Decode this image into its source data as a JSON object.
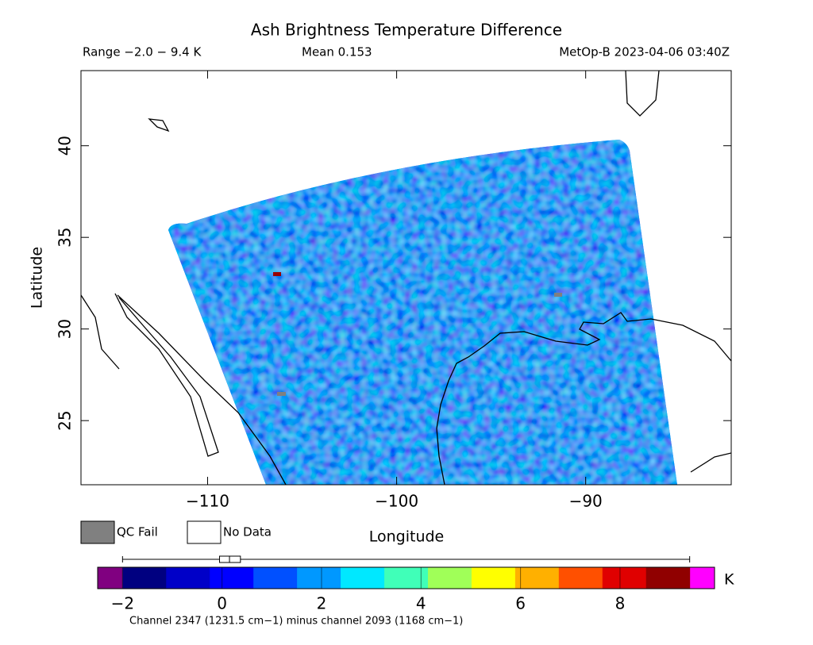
{
  "header": {
    "title": "Ash Brightness Temperature Difference",
    "range": "Range −2.0 − 9.4 K",
    "mean": "Mean 0.153",
    "source": "MetOp-B 2023-04-06 03:40Z"
  },
  "chart_data": {
    "type": "map",
    "x_label": "Longitude",
    "y_label": "Latitude",
    "xlim": [
      -116.7,
      -82.3
    ],
    "ylim": [
      21.5,
      44.1
    ],
    "xticks": [
      {
        "value": -110,
        "label": "−110"
      },
      {
        "value": -100,
        "label": "−100"
      },
      {
        "value": -90,
        "label": "−90"
      }
    ],
    "yticks": [
      25,
      30,
      35,
      40
    ]
  },
  "legend": {
    "items": [
      {
        "name": "QC Fail",
        "color": "#808080"
      },
      {
        "name": "No Data",
        "color": "#ffffff"
      }
    ]
  },
  "colorbar": {
    "unit": "K",
    "xlim": [
      -2.5,
      9.9
    ],
    "clim": [
      -2,
      9.4
    ],
    "under_color": "#800080",
    "over_color": "#ff00ff",
    "colors": [
      "#000080",
      "#0000c8",
      "#0000ff",
      "#0050ff",
      "#0098ff",
      "#00e8ff",
      "#40ffb8",
      "#a0ff58",
      "#ffff00",
      "#ffb000",
      "#ff5000",
      "#e00000",
      "#900000"
    ],
    "ticks": [
      {
        "value": -2,
        "label": "−2"
      },
      0,
      2,
      4,
      6,
      8
    ],
    "boxplot": {
      "min": -2.0,
      "q1": -0.05,
      "median": 0.15,
      "q3": 0.37,
      "max": 9.4
    },
    "note": "Channel 2347 (1231.5 cm−1) minus channel 2093 (1168 cm−1)"
  }
}
